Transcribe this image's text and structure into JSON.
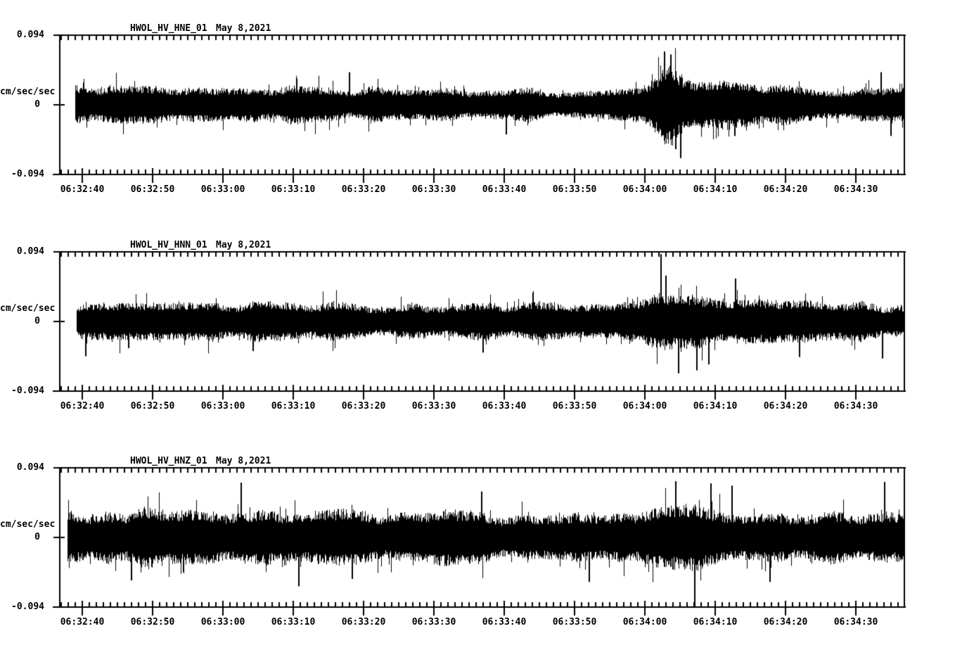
{
  "page": {
    "background_color": "#ffffff",
    "axis_color": "#000000",
    "trace_color": "#000000",
    "text_color": "#000000"
  },
  "chart_data": [
    {
      "type": "line",
      "variant": "seismogram-noise-trace",
      "title_station": "HWOL_HV_HNE_01",
      "title_date": "May 8,2021",
      "ylabel": "cm/sec/sec",
      "ylim": [
        -0.094,
        0.094
      ],
      "ytick_labels": [
        "0.094",
        "0",
        "-0.094"
      ],
      "xtick_labels": [
        "06:32:40",
        "06:32:50",
        "06:33:00",
        "06:33:10",
        "06:33:20",
        "06:33:30",
        "06:33:40",
        "06:33:50",
        "06:34:00",
        "06:34:10",
        "06:34:20",
        "06:34:30"
      ],
      "x_axis_start_time": "06:32:37",
      "x_axis_end_time": "06:34:37",
      "x_major_tick_seconds": 10,
      "x_minor_tick_seconds": 1,
      "grid": false,
      "legend": false,
      "trace_start_offset_sec": 2.2,
      "envelope": {
        "t_sec": [
          2.2,
          6,
          14,
          22,
          30,
          38,
          46,
          54,
          60,
          66,
          72,
          78,
          81,
          83,
          85,
          86.5,
          88,
          90,
          93,
          97,
          102,
          108,
          114,
          118,
          120.1
        ],
        "amp": [
          0.031,
          0.03,
          0.029,
          0.031,
          0.03,
          0.028,
          0.029,
          0.027,
          0.025,
          0.027,
          0.024,
          0.026,
          0.028,
          0.034,
          0.05,
          0.07,
          0.065,
          0.052,
          0.042,
          0.036,
          0.034,
          0.029,
          0.027,
          0.032,
          0.031
        ]
      },
      "spikes": [
        [
          41.2,
          0.044
        ],
        [
          63.5,
          -0.04
        ],
        [
          86.0,
          0.072
        ],
        [
          86.9,
          0.068
        ],
        [
          87.6,
          -0.06
        ],
        [
          88.3,
          -0.072
        ],
        [
          96.0,
          -0.042
        ],
        [
          116.8,
          0.044
        ],
        [
          118.2,
          -0.042
        ]
      ]
    },
    {
      "type": "line",
      "variant": "seismogram-noise-trace",
      "title_station": "HWOL_HV_HNN_01",
      "title_date": "May 8,2021",
      "ylabel": "cm/sec/sec",
      "ylim": [
        -0.094,
        0.094
      ],
      "ytick_labels": [
        "0.094",
        "0",
        "-0.094"
      ],
      "xtick_labels": [
        "06:32:40",
        "06:32:50",
        "06:33:00",
        "06:33:10",
        "06:33:20",
        "06:33:30",
        "06:33:40",
        "06:33:50",
        "06:34:00",
        "06:34:10",
        "06:34:20",
        "06:34:30"
      ],
      "x_axis_start_time": "06:32:37",
      "x_axis_end_time": "06:34:37",
      "x_major_tick_seconds": 10,
      "x_minor_tick_seconds": 1,
      "grid": false,
      "legend": false,
      "trace_start_offset_sec": 2.4,
      "envelope": {
        "t_sec": [
          2.4,
          5,
          10,
          16,
          22,
          28,
          33,
          38,
          44,
          50,
          56,
          62,
          68,
          74,
          79,
          83,
          85.5,
          88,
          91,
          95,
          99,
          104,
          110,
          115,
          120.1
        ],
        "amp": [
          0.029,
          0.031,
          0.03,
          0.029,
          0.03,
          0.033,
          0.035,
          0.031,
          0.03,
          0.029,
          0.03,
          0.028,
          0.029,
          0.028,
          0.03,
          0.034,
          0.046,
          0.044,
          0.046,
          0.042,
          0.038,
          0.034,
          0.032,
          0.031,
          0.029
        ]
      },
      "spikes": [
        [
          3.7,
          -0.047
        ],
        [
          9.8,
          -0.036
        ],
        [
          27.5,
          -0.04
        ],
        [
          60.2,
          -0.042
        ],
        [
          85.5,
          0.091
        ],
        [
          86.2,
          0.062
        ],
        [
          88.0,
          -0.07
        ],
        [
          90.6,
          -0.066
        ],
        [
          92.3,
          -0.058
        ],
        [
          96.1,
          0.058
        ],
        [
          105.2,
          -0.048
        ],
        [
          117.0,
          -0.05
        ]
      ]
    },
    {
      "type": "line",
      "variant": "seismogram-noise-trace",
      "title_station": "HWOL_HV_HNZ_01",
      "title_date": "May 8,2021",
      "ylabel": "cm/sec/sec",
      "ylim": [
        -0.094,
        0.094
      ],
      "ytick_labels": [
        "0.094",
        "0",
        "-0.094"
      ],
      "xtick_labels": [
        "06:32:40",
        "06:32:50",
        "06:33:00",
        "06:33:10",
        "06:33:20",
        "06:33:30",
        "06:33:40",
        "06:33:50",
        "06:34:00",
        "06:34:10",
        "06:34:20",
        "06:34:30"
      ],
      "x_axis_start_time": "06:32:37",
      "x_axis_end_time": "06:34:37",
      "x_major_tick_seconds": 10,
      "x_minor_tick_seconds": 1,
      "grid": false,
      "legend": false,
      "trace_start_offset_sec": 1.1,
      "envelope": {
        "t_sec": [
          1.1,
          5,
          10,
          16,
          22,
          27,
          33,
          39,
          45,
          51,
          57,
          63,
          69,
          75,
          81,
          86,
          90,
          94,
          99,
          104,
          109,
          114,
          118,
          120.1
        ],
        "amp": [
          0.05,
          0.048,
          0.051,
          0.048,
          0.05,
          0.047,
          0.048,
          0.045,
          0.044,
          0.043,
          0.044,
          0.042,
          0.043,
          0.042,
          0.045,
          0.05,
          0.053,
          0.049,
          0.047,
          0.044,
          0.043,
          0.042,
          0.047,
          0.045
        ]
      },
      "spikes": [
        [
          10.2,
          -0.058
        ],
        [
          25.8,
          0.074
        ],
        [
          34.0,
          -0.066
        ],
        [
          41.6,
          -0.056
        ],
        [
          60.0,
          0.062
        ],
        [
          75.3,
          -0.06
        ],
        [
          87.6,
          0.076
        ],
        [
          90.3,
          -0.094
        ],
        [
          92.6,
          0.073
        ],
        [
          95.6,
          0.07
        ],
        [
          101.0,
          -0.06
        ],
        [
          117.3,
          0.075
        ]
      ]
    }
  ]
}
